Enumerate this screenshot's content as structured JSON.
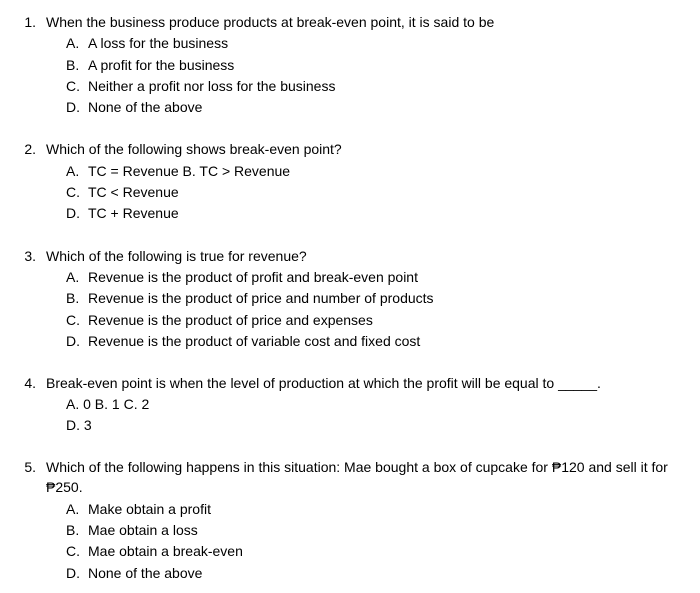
{
  "questions": [
    {
      "number": "1.",
      "text": "When the business produce products at break-even point, it is said to be",
      "options": [
        {
          "letter": "A.",
          "text": "A loss for the business"
        },
        {
          "letter": "B.",
          "text": "A profit for the business"
        },
        {
          "letter": "C.",
          "text": "Neither a profit nor loss for the business"
        },
        {
          "letter": "D.",
          "text": "None of the above"
        }
      ]
    },
    {
      "number": "2.",
      "text": "Which of the following shows break-even point?",
      "options": [
        {
          "letter": "A.",
          "text": "TC = Revenue B. TC > Revenue"
        },
        {
          "letter": "C.",
          "text": "TC < Revenue"
        },
        {
          "letter": "D.",
          "text": "TC + Revenue"
        }
      ]
    },
    {
      "number": "3.",
      "text": "Which of the following is true for revenue?",
      "options": [
        {
          "letter": "A.",
          "text": "Revenue is the product of profit and break-even point"
        },
        {
          "letter": "B.",
          "text": "Revenue is the product of price and number of products"
        },
        {
          "letter": "C.",
          "text": "Revenue is the product of price and expenses"
        },
        {
          "letter": "D.",
          "text": "Revenue is the product of variable cost and fixed cost"
        }
      ]
    },
    {
      "number": "4.",
      "text": "Break-even point is when the level of production at which the profit will be equal to _____.",
      "inline_options": [
        "A.  0 B. 1 C. 2",
        "D. 3"
      ]
    },
    {
      "number": "5.",
      "text": "Which of the following happens in this situation: Mae bought a box of cupcake for ₱120 and sell it for ₱250.",
      "options": [
        {
          "letter": "A.",
          "text": "Make obtain a profit"
        },
        {
          "letter": "B.",
          "text": "Mae obtain a loss"
        },
        {
          "letter": "C.",
          "text": "Mae obtain a break-even"
        },
        {
          "letter": "D.",
          "text": "None of the above"
        }
      ]
    }
  ]
}
